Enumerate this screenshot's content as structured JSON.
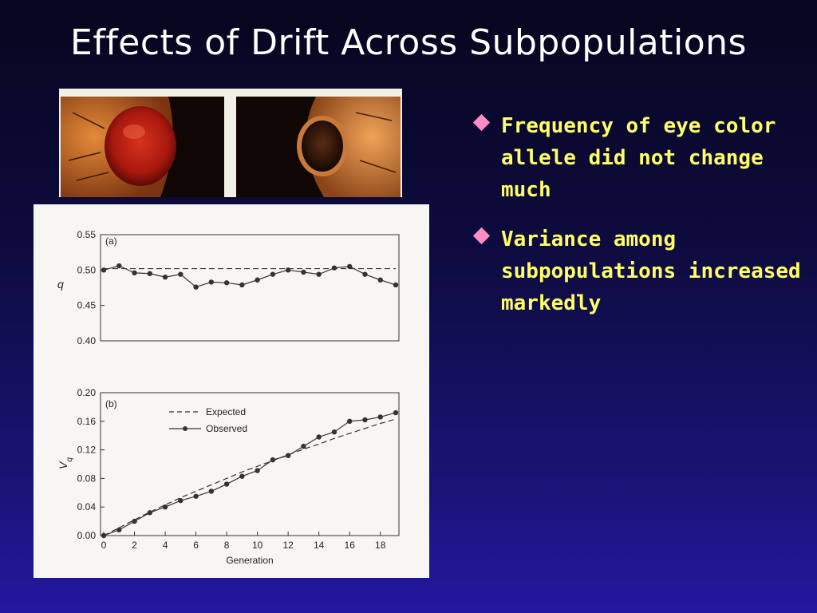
{
  "slide": {
    "title": "Effects of Drift Across Subpopulations"
  },
  "bullets": [
    {
      "text": "Frequency of eye color allele did not change much",
      "icon": "diamond-bullet-icon"
    },
    {
      "text": "Variance among subpopulations increased markedly",
      "icon": "diamond-bullet-icon"
    }
  ],
  "colors": {
    "bullet_text": "#ffff66",
    "bullet_icon": "#ff8cc6",
    "title": "#ffffff"
  },
  "chart_data": [
    {
      "type": "line",
      "panel_label": "(a)",
      "ylabel": "q",
      "xlabel": "",
      "ylim": [
        0.4,
        0.55
      ],
      "xlim": [
        0,
        19
      ],
      "yticks": [
        "0.55",
        "0.50",
        "0.45",
        "0.40"
      ],
      "grid": false,
      "series": [
        {
          "x": [
            0,
            1,
            2,
            3,
            4,
            5,
            6,
            7,
            8,
            9,
            10,
            11,
            12,
            13,
            14,
            15,
            16,
            17,
            18,
            19
          ],
          "values": [
            0.5,
            0.506,
            0.496,
            0.495,
            0.49,
            0.494,
            0.476,
            0.483,
            0.482,
            0.479,
            0.486,
            0.494,
            0.5,
            0.497,
            0.494,
            0.503,
            0.505,
            0.494,
            0.486,
            0.479
          ]
        },
        {
          "x": [
            0,
            19
          ],
          "values": [
            0.502,
            0.502
          ]
        }
      ]
    },
    {
      "type": "line",
      "panel_label": "(b)",
      "ylabel": "V",
      "ylabel_subscript": "q",
      "xlabel": "Generation",
      "ylim": [
        0.0,
        0.2
      ],
      "xlim": [
        0,
        19
      ],
      "yticks": [
        "0.20",
        "0.16",
        "0.12",
        "0.08",
        "0.04",
        "0.00"
      ],
      "xticks": [
        "0",
        "2",
        "4",
        "6",
        "8",
        "10",
        "12",
        "14",
        "16",
        "18"
      ],
      "legend": "top-left",
      "grid": false,
      "series": [
        {
          "name": "Expected",
          "x": [
            0,
            1,
            2,
            3,
            4,
            5,
            6,
            7,
            8,
            9,
            10,
            11,
            12,
            13,
            14,
            15,
            16,
            17,
            18,
            19
          ],
          "values": [
            0.0,
            0.011,
            0.022,
            0.033,
            0.043,
            0.053,
            0.062,
            0.071,
            0.08,
            0.089,
            0.097,
            0.105,
            0.113,
            0.121,
            0.128,
            0.136,
            0.143,
            0.15,
            0.157,
            0.163
          ]
        },
        {
          "name": "Observed",
          "x": [
            0,
            1,
            2,
            3,
            4,
            5,
            6,
            7,
            8,
            9,
            10,
            11,
            12,
            13,
            14,
            15,
            16,
            17,
            18,
            19
          ],
          "values": [
            0.0,
            0.008,
            0.02,
            0.032,
            0.04,
            0.049,
            0.055,
            0.062,
            0.072,
            0.083,
            0.091,
            0.106,
            0.112,
            0.125,
            0.138,
            0.145,
            0.16,
            0.162,
            0.166,
            0.172
          ]
        }
      ]
    }
  ]
}
